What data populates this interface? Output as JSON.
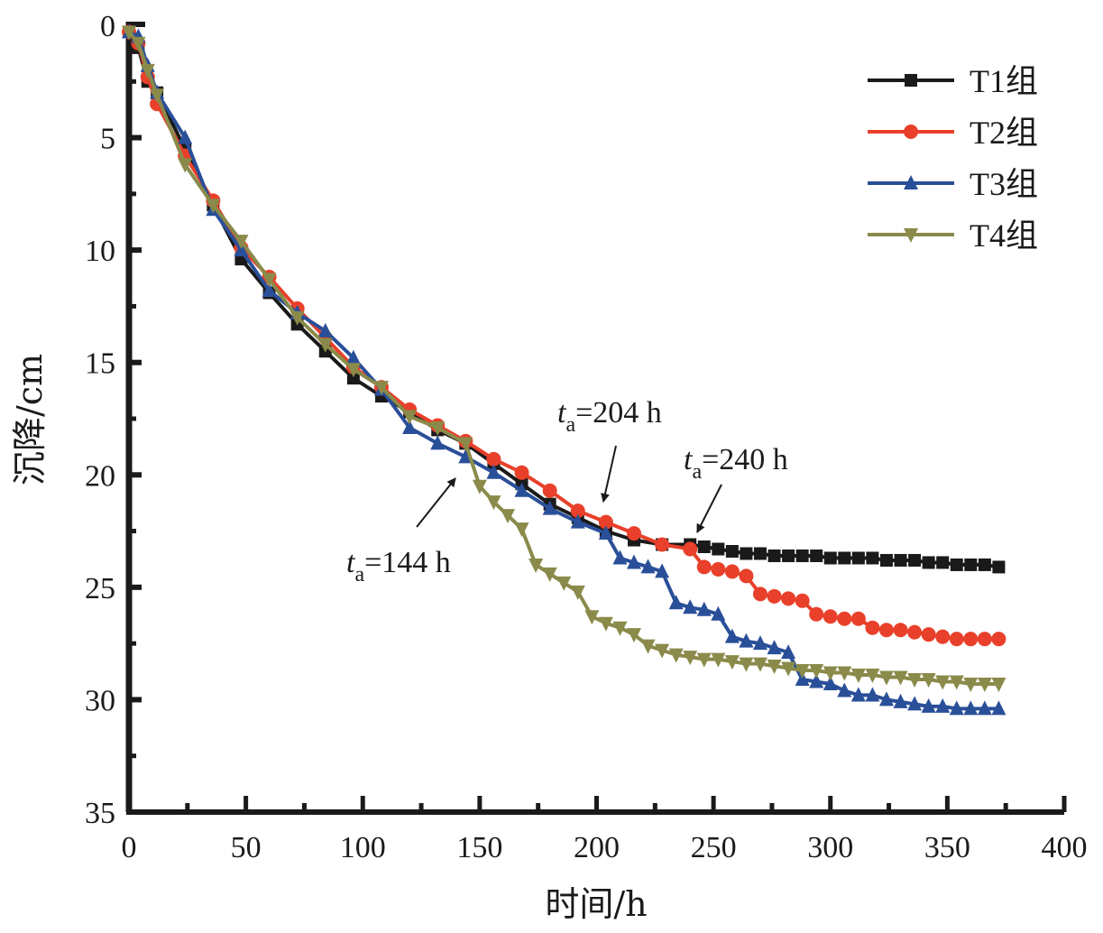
{
  "chart_data": {
    "type": "line",
    "title": "",
    "xlabel": "时间/h",
    "ylabel": "沉降/cm",
    "xlim": [
      0,
      400
    ],
    "ylim": [
      0,
      35
    ],
    "y_inverted": true,
    "xticks": [
      0,
      50,
      100,
      150,
      200,
      250,
      300,
      350,
      400
    ],
    "yticks": [
      0,
      5,
      10,
      15,
      20,
      25,
      30,
      35
    ],
    "grid": false,
    "legend_position": "top-right",
    "series": [
      {
        "name": "T1组",
        "color": "#1a1a1a",
        "marker": "square",
        "x": [
          0,
          4,
          8,
          12,
          24,
          36,
          48,
          60,
          72,
          84,
          96,
          108,
          120,
          132,
          144,
          156,
          168,
          180,
          192,
          204,
          216,
          228,
          240,
          246,
          252,
          258,
          264,
          270,
          276,
          282,
          288,
          294,
          300,
          306,
          312,
          318,
          324,
          330,
          336,
          342,
          348,
          354,
          360,
          366,
          372
        ],
        "y": [
          0.3,
          1.0,
          2.5,
          3.0,
          5.5,
          8.0,
          10.4,
          11.9,
          13.3,
          14.5,
          15.7,
          16.5,
          17.2,
          18.0,
          18.6,
          19.5,
          20.4,
          21.3,
          21.9,
          22.5,
          22.9,
          23.1,
          23.1,
          23.2,
          23.3,
          23.4,
          23.5,
          23.5,
          23.6,
          23.6,
          23.6,
          23.6,
          23.7,
          23.7,
          23.7,
          23.7,
          23.8,
          23.8,
          23.8,
          23.9,
          23.9,
          24.0,
          24.0,
          24.0,
          24.1
        ]
      },
      {
        "name": "T2组",
        "color": "#e8402a",
        "marker": "circle",
        "x": [
          0,
          4,
          8,
          12,
          24,
          36,
          48,
          60,
          72,
          84,
          96,
          108,
          120,
          132,
          144,
          156,
          168,
          180,
          192,
          204,
          216,
          228,
          240,
          246,
          252,
          258,
          264,
          270,
          276,
          282,
          288,
          294,
          300,
          306,
          312,
          318,
          324,
          330,
          336,
          342,
          348,
          354,
          360,
          366,
          372
        ],
        "y": [
          0.3,
          0.8,
          2.3,
          3.5,
          5.8,
          7.8,
          9.9,
          11.2,
          12.6,
          13.9,
          15.2,
          16.1,
          17.1,
          17.8,
          18.5,
          19.3,
          19.9,
          20.7,
          21.6,
          22.1,
          22.6,
          23.1,
          23.3,
          24.1,
          24.2,
          24.3,
          24.5,
          25.3,
          25.4,
          25.5,
          25.6,
          26.2,
          26.3,
          26.4,
          26.4,
          26.8,
          26.9,
          26.9,
          27.0,
          27.1,
          27.2,
          27.3,
          27.3,
          27.3,
          27.3
        ]
      },
      {
        "name": "T3组",
        "color": "#2a4f99",
        "marker": "triangle-up",
        "x": [
          0,
          4,
          8,
          12,
          24,
          36,
          48,
          60,
          72,
          84,
          96,
          108,
          120,
          132,
          144,
          156,
          168,
          180,
          192,
          204,
          210,
          216,
          222,
          228,
          234,
          240,
          246,
          252,
          258,
          264,
          270,
          276,
          282,
          288,
          294,
          300,
          306,
          312,
          318,
          324,
          330,
          336,
          342,
          348,
          354,
          360,
          366,
          372
        ],
        "y": [
          0.3,
          0.5,
          1.8,
          3.0,
          5.0,
          8.2,
          10.0,
          11.8,
          12.8,
          13.6,
          14.8,
          16.2,
          17.9,
          18.6,
          19.2,
          19.9,
          20.7,
          21.5,
          22.1,
          22.6,
          23.7,
          23.9,
          24.1,
          24.3,
          25.7,
          25.9,
          26.0,
          26.2,
          27.2,
          27.4,
          27.5,
          27.7,
          27.9,
          29.1,
          29.2,
          29.3,
          29.6,
          29.8,
          29.8,
          30.0,
          30.1,
          30.2,
          30.3,
          30.3,
          30.4,
          30.4,
          30.4,
          30.4
        ]
      },
      {
        "name": "T4组",
        "color": "#8a8a4a",
        "marker": "triangle-down",
        "x": [
          0,
          4,
          8,
          12,
          24,
          36,
          48,
          60,
          72,
          84,
          96,
          108,
          120,
          132,
          144,
          150,
          156,
          162,
          168,
          174,
          180,
          186,
          192,
          198,
          204,
          210,
          216,
          222,
          228,
          234,
          240,
          246,
          252,
          258,
          264,
          270,
          276,
          282,
          288,
          294,
          300,
          306,
          312,
          318,
          324,
          330,
          336,
          342,
          348,
          354,
          360,
          366,
          372
        ],
        "y": [
          0.3,
          0.8,
          2.0,
          3.1,
          6.2,
          8.0,
          9.6,
          11.3,
          13.0,
          14.2,
          15.3,
          16.1,
          17.4,
          17.9,
          18.6,
          20.5,
          21.2,
          21.8,
          22.4,
          24.0,
          24.4,
          24.8,
          25.2,
          26.3,
          26.6,
          26.8,
          27.1,
          27.6,
          27.8,
          28.0,
          28.1,
          28.2,
          28.2,
          28.3,
          28.4,
          28.4,
          28.5,
          28.6,
          28.7,
          28.7,
          28.8,
          28.8,
          28.9,
          28.9,
          29.0,
          29.0,
          29.1,
          29.1,
          29.2,
          29.2,
          29.3,
          29.3,
          29.3
        ]
      }
    ],
    "annotations": [
      {
        "prefix": "t",
        "subscript": "a",
        "text": "=144 h",
        "points_to": [
          144,
          19.0
        ]
      },
      {
        "prefix": "t",
        "subscript": "a",
        "text": "=204 h",
        "points_to": [
          204,
          21.3
        ]
      },
      {
        "prefix": "t",
        "subscript": "a",
        "text": "=240 h",
        "points_to": [
          240,
          22.8
        ]
      }
    ]
  }
}
